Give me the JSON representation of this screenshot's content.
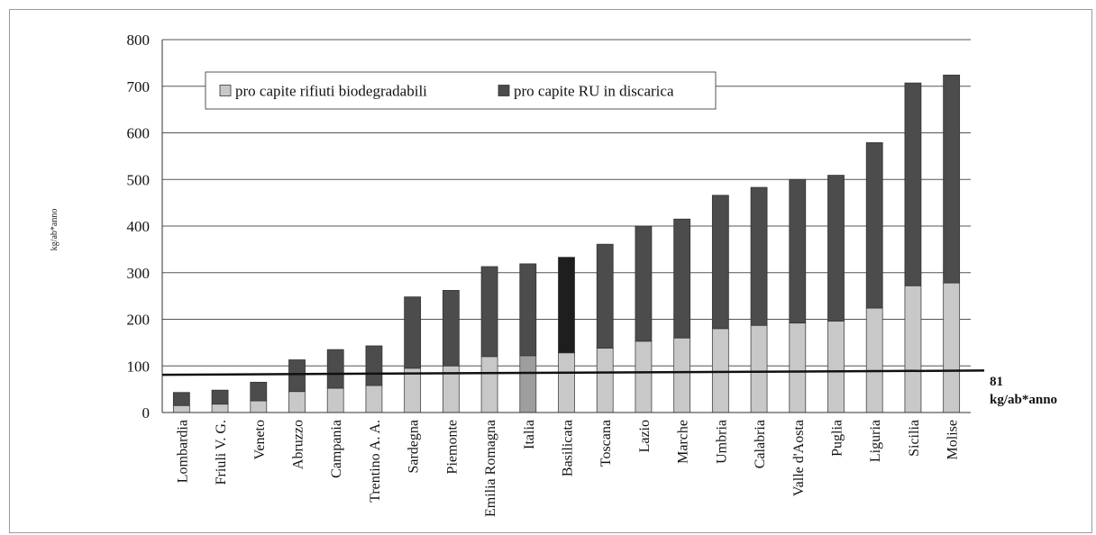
{
  "chart_data": {
    "type": "bar",
    "stacked": true,
    "title": "",
    "xlabel": "",
    "ylabel": "kg/ab*anno",
    "ylim": [
      0,
      800
    ],
    "yticks": [
      0,
      100,
      200,
      300,
      400,
      500,
      600,
      700,
      800
    ],
    "grid": true,
    "legend_position": "top-left",
    "categories": [
      "Lombardia",
      "Friuli V. G.",
      "Veneto",
      "Abruzzo",
      "Campania",
      "Trentino A. A.",
      "Sardegna",
      "Piemonte",
      "Emilia Romagna",
      "Italia",
      "Basilicata",
      "Toscana",
      "Lazio",
      "Marche",
      "Umbria",
      "Calabria",
      "Valle d'Aosta",
      "Puglia",
      "Liguria",
      "Sicilia",
      "Molise"
    ],
    "series": [
      {
        "name": "pro capite rifiuti biodegradabili",
        "color": "#c8c8c8",
        "values": [
          15,
          18,
          25,
          45,
          52,
          58,
          95,
          100,
          120,
          122,
          128,
          138,
          153,
          160,
          180,
          187,
          192,
          196,
          224,
          272,
          278
        ]
      },
      {
        "name": "pro capite RU in discarica",
        "color": "#4c4c4c",
        "values": [
          28,
          30,
          40,
          68,
          83,
          85,
          153,
          162,
          193,
          197,
          205,
          223,
          247,
          255,
          286,
          296,
          308,
          313,
          355,
          435,
          446
        ]
      }
    ],
    "highlight_colors": {
      "Italia": {
        "lower": "#9e9e9e"
      },
      "Basilicata": {
        "upper": "#1e1e1e"
      }
    },
    "reference_line": {
      "value_label": "81",
      "unit_label": "kg/ab*anno",
      "start_value": 81,
      "end_value": 90,
      "color": "#111111"
    }
  }
}
